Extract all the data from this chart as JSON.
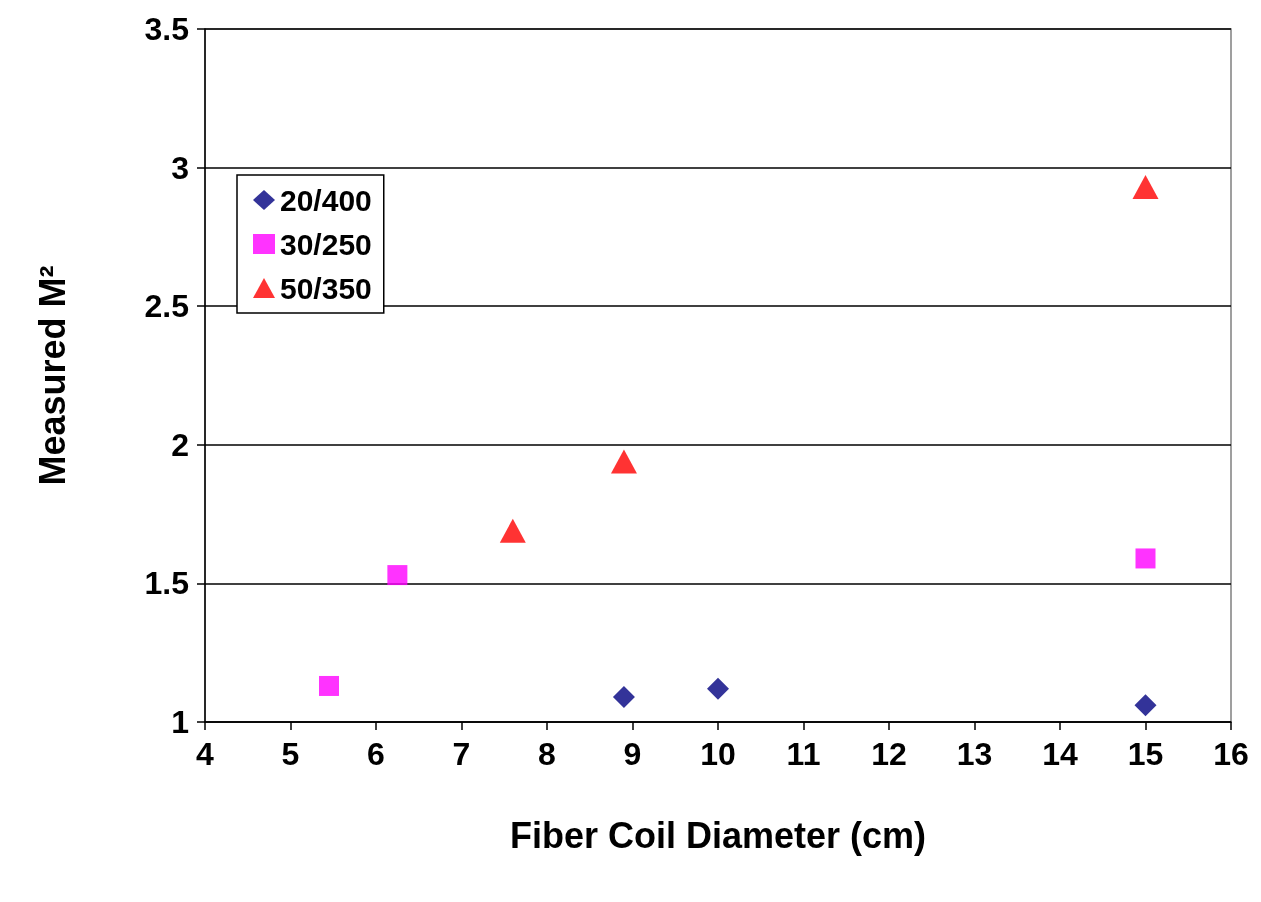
{
  "chart_data": {
    "type": "scatter",
    "xlabel": "Fiber Coil Diameter (cm)",
    "ylabel": "Measured M²",
    "xlim": [
      4,
      16
    ],
    "xticks": [
      4,
      5,
      6,
      7,
      8,
      9,
      10,
      11,
      12,
      13,
      14,
      15,
      16
    ],
    "ylim": [
      1,
      3.5
    ],
    "yticks": [
      1,
      1.5,
      2,
      2.5,
      3,
      3.5
    ],
    "grid": "y",
    "legend": "top left",
    "series": [
      {
        "name": "20/400",
        "color": "#000080",
        "marker": "diamond",
        "x": [
          8.9,
          10,
          15
        ],
        "values": [
          1.09,
          1.12,
          1.06
        ]
      },
      {
        "name": "30/250",
        "color": "#ff00ff",
        "marker": "square",
        "x": [
          5.45,
          6.25,
          15
        ],
        "values": [
          1.13,
          1.53,
          1.59
        ]
      },
      {
        "name": "50/350",
        "color": "#ff0000",
        "marker": "triangle",
        "x": [
          7.6,
          8.9,
          15
        ],
        "values": [
          1.69,
          1.94,
          2.93
        ]
      }
    ]
  }
}
